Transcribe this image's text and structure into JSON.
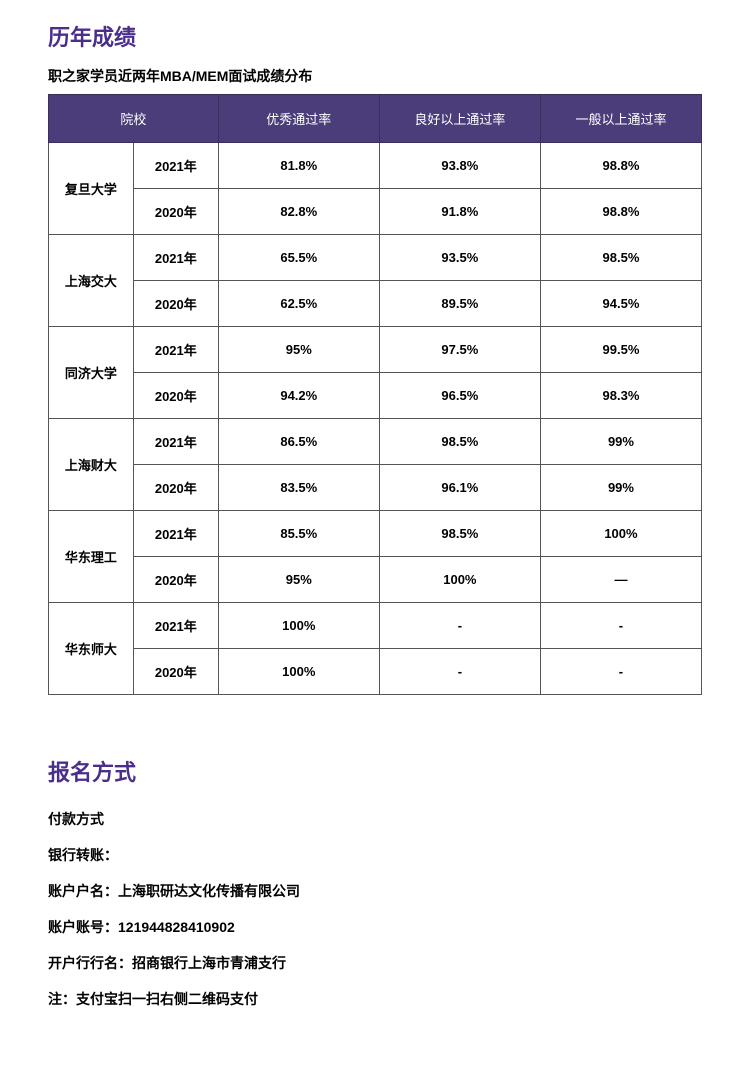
{
  "section1": {
    "title": "历年成绩",
    "subtitle": "职之家学员近两年MBA/MEM面试成绩分布",
    "columns": [
      "院校",
      "优秀通过率",
      "良好以上通过率",
      "一般以上通过率"
    ],
    "schools": [
      {
        "name": "复旦大学",
        "rows": [
          {
            "year": "2021年",
            "c1": "81.8%",
            "c2": "93.8%",
            "c3": "98.8%"
          },
          {
            "year": "2020年",
            "c1": "82.8%",
            "c2": "91.8%",
            "c3": "98.8%"
          }
        ]
      },
      {
        "name": "上海交大",
        "rows": [
          {
            "year": "2021年",
            "c1": "65.5%",
            "c2": "93.5%",
            "c3": "98.5%"
          },
          {
            "year": "2020年",
            "c1": "62.5%",
            "c2": "89.5%",
            "c3": "94.5%"
          }
        ]
      },
      {
        "name": "同济大学",
        "rows": [
          {
            "year": "2021年",
            "c1": "95%",
            "c2": "97.5%",
            "c3": "99.5%"
          },
          {
            "year": "2020年",
            "c1": "94.2%",
            "c2": "96.5%",
            "c3": "98.3%"
          }
        ]
      },
      {
        "name": "上海财大",
        "rows": [
          {
            "year": "2021年",
            "c1": "86.5%",
            "c2": "98.5%",
            "c3": "99%"
          },
          {
            "year": "2020年",
            "c1": "83.5%",
            "c2": "96.1%",
            "c3": "99%"
          }
        ]
      },
      {
        "name": "华东理工",
        "rows": [
          {
            "year": "2021年",
            "c1": "85.5%",
            "c2": "98.5%",
            "c3": "100%"
          },
          {
            "year": "2020年",
            "c1": "95%",
            "c2": "100%",
            "c3": "—"
          }
        ]
      },
      {
        "name": "华东师大",
        "rows": [
          {
            "year": "2021年",
            "c1": "100%",
            "c2": "-",
            "c3": "-"
          },
          {
            "year": "2020年",
            "c1": "100%",
            "c2": "-",
            "c3": "-"
          }
        ]
      }
    ]
  },
  "section2": {
    "title": "报名方式",
    "lines": [
      "付款方式",
      "银行转账：",
      "账户户名：上海职研达文化传播有限公司",
      "账户账号：121944828410902",
      "开户行行名：招商银行上海市青浦支行",
      "注：支付宝扫一扫右侧二维码支付"
    ]
  },
  "styling": {
    "header_bg": "#4b3c7a",
    "header_text": "#ffffff",
    "title_color": "#4b2e8c",
    "border_color": "#555555",
    "page_bg": "#ffffff",
    "font_sizes": {
      "title": 22,
      "subtitle": 14,
      "body": 14,
      "table": 13
    }
  }
}
